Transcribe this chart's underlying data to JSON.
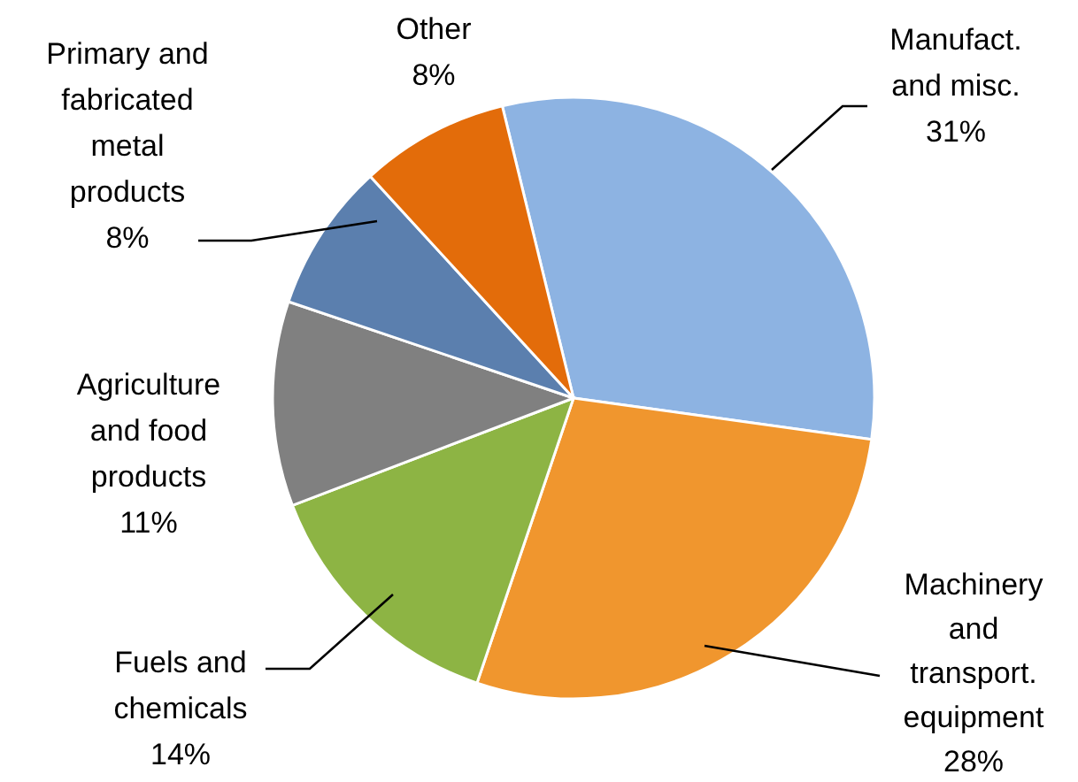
{
  "chart_data": {
    "type": "pie",
    "categories": [
      "Manufact.\nand misc.",
      "Machinery\nand\ntransport.\nequipment",
      "Fuels and\nchemicals",
      "Agriculture\nand food\nproducts",
      "Primary and\nfabricated\nmetal\nproducts",
      "Other"
    ],
    "values": [
      31,
      28,
      14,
      11,
      8,
      8
    ],
    "value_labels": [
      "31%",
      "28%",
      "14%",
      "11%",
      "8%",
      "8%"
    ],
    "colors": [
      "#8db3e2",
      "#f0962e",
      "#8db444",
      "#808080",
      "#5b7fae",
      "#e36c0a"
    ]
  }
}
